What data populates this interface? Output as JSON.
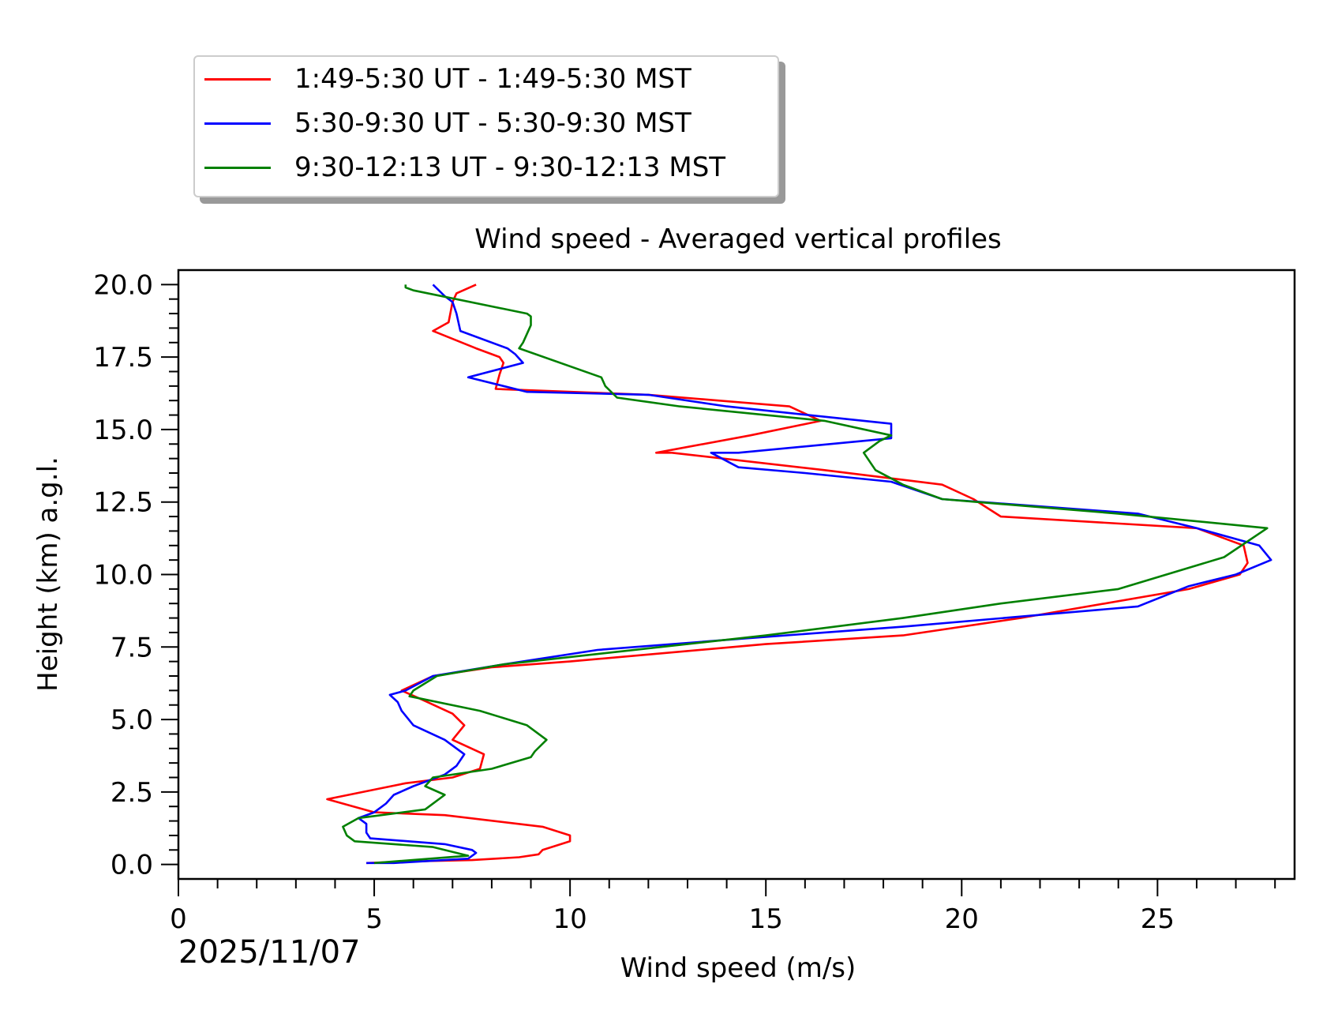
{
  "chart_data": {
    "type": "line",
    "title": "Wind speed - Averaged vertical profiles",
    "xlabel": "Wind speed (m/s)",
    "ylabel": "Height (km) a.g.l.",
    "date_label": "2025/11/07",
    "xlim": [
      0,
      28.5
    ],
    "ylim": [
      -0.5,
      20.5
    ],
    "xticks": [
      0,
      5,
      10,
      15,
      20,
      25
    ],
    "xtick_labels": [
      "0",
      "5",
      "10",
      "15",
      "20",
      "25"
    ],
    "yticks": [
      0.0,
      2.5,
      5.0,
      7.5,
      10.0,
      12.5,
      15.0,
      17.5,
      20.0
    ],
    "ytick_labels": [
      "0.0",
      "2.5",
      "5.0",
      "7.5",
      "10.0",
      "12.5",
      "15.0",
      "17.5",
      "20.0"
    ],
    "legend_placement": "above-left",
    "series": [
      {
        "name": "1:49-5:30 UT - 1:49-5:30 MST",
        "color": "#ff0000",
        "x": [
          4.8,
          5.8,
          7.5,
          8.7,
          9.2,
          9.3,
          10.0,
          10.0,
          9.3,
          6.8,
          5.0,
          3.8,
          5.8,
          7.0,
          7.7,
          7.8,
          7.0,
          7.3,
          7.0,
          6.2,
          5.7,
          6.5,
          8.0,
          10.0,
          15.0,
          18.5,
          21.5,
          25.8,
          27.1,
          27.3,
          27.2,
          26.0,
          21.0,
          20.3,
          19.5,
          16.5,
          12.6,
          12.2,
          14.6,
          16.4,
          15.6,
          12.0,
          8.1,
          8.2,
          8.3,
          8.2,
          7.6,
          6.5,
          6.9,
          7.0,
          7.1,
          7.6
        ],
        "y": [
          0.05,
          0.1,
          0.15,
          0.25,
          0.35,
          0.5,
          0.8,
          1.0,
          1.3,
          1.7,
          1.8,
          2.25,
          2.8,
          3.0,
          3.3,
          3.8,
          4.3,
          4.8,
          5.2,
          5.7,
          6.0,
          6.5,
          6.8,
          7.0,
          7.6,
          7.9,
          8.5,
          9.5,
          10.0,
          10.4,
          11.0,
          11.6,
          12.0,
          12.6,
          13.1,
          13.6,
          14.2,
          14.2,
          14.8,
          15.3,
          15.8,
          16.2,
          16.4,
          16.9,
          17.3,
          17.5,
          17.8,
          18.4,
          18.7,
          19.4,
          19.7,
          20.0
        ]
      },
      {
        "name": "5:30-9:30 UT - 5:30-9:30 MST",
        "color": "#0000ff",
        "x": [
          4.8,
          5.5,
          7.4,
          7.6,
          7.5,
          6.8,
          4.9,
          4.8,
          4.8,
          4.6,
          5.0,
          5.3,
          5.5,
          6.0,
          6.8,
          7.1,
          7.3,
          6.8,
          6.0,
          5.7,
          5.6,
          5.4,
          5.8,
          6.5,
          8.3,
          10.7,
          14.5,
          18.5,
          24.5,
          25.8,
          27.0,
          27.9,
          27.6,
          26.0,
          24.5,
          19.5,
          18.2,
          16.0,
          14.3,
          13.6,
          14.3,
          18.2,
          18.2,
          14.0,
          12.0,
          8.9,
          7.4,
          8.8,
          8.6,
          8.4,
          7.2,
          7.1,
          7.0,
          6.8,
          6.5
        ],
        "y": [
          0.05,
          0.05,
          0.2,
          0.4,
          0.5,
          0.7,
          0.9,
          1.1,
          1.4,
          1.6,
          1.8,
          2.1,
          2.4,
          2.7,
          3.1,
          3.4,
          3.8,
          4.3,
          4.8,
          5.3,
          5.6,
          5.85,
          6.0,
          6.5,
          6.9,
          7.4,
          7.8,
          8.2,
          8.9,
          9.6,
          10.0,
          10.5,
          11.0,
          11.6,
          12.1,
          12.6,
          13.2,
          13.5,
          13.7,
          14.2,
          14.2,
          14.7,
          15.2,
          15.8,
          16.2,
          16.3,
          16.8,
          17.3,
          17.6,
          17.8,
          18.4,
          19.0,
          19.4,
          19.6,
          20.0
        ]
      },
      {
        "name": "9:30-12:13 UT - 9:30-12:13 MST",
        "color": "#008000",
        "x": [
          5.0,
          7.4,
          6.5,
          4.5,
          4.3,
          4.2,
          4.6,
          6.3,
          6.8,
          6.3,
          6.5,
          8.0,
          9.0,
          9.1,
          9.4,
          8.9,
          7.7,
          5.9,
          6.0,
          6.6,
          8.3,
          15.0,
          18.5,
          21.0,
          24.0,
          26.7,
          27.8,
          24.0,
          19.5,
          18.5,
          17.8,
          17.5,
          17.9,
          18.2,
          16.5,
          12.8,
          11.2,
          10.9,
          10.8,
          8.7,
          8.8,
          9.0,
          9.0,
          8.9,
          6.0,
          5.8,
          5.8
        ],
        "y": [
          0.05,
          0.3,
          0.6,
          0.8,
          1.0,
          1.3,
          1.6,
          1.9,
          2.4,
          2.7,
          3.0,
          3.3,
          3.7,
          3.9,
          4.3,
          4.8,
          5.3,
          5.8,
          6.0,
          6.5,
          6.9,
          7.9,
          8.5,
          9.0,
          9.5,
          10.6,
          11.6,
          12.1,
          12.6,
          13.1,
          13.6,
          14.2,
          14.6,
          14.8,
          15.3,
          15.8,
          16.1,
          16.5,
          16.8,
          17.8,
          18.0,
          18.6,
          18.9,
          19.0,
          19.8,
          19.9,
          20.0
        ]
      }
    ]
  }
}
